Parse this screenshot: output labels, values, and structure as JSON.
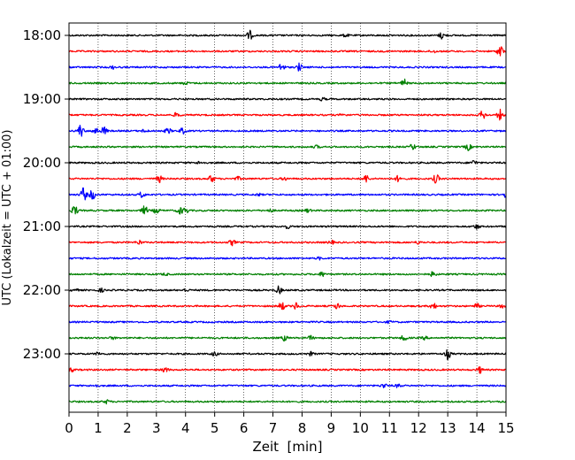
{
  "chart_data": {
    "type": "line",
    "subtype": "helicorder",
    "title": "",
    "xlabel": "Zeit  [min]",
    "ylabel": "UTC (Lokalzeit = UTC + 01:00)",
    "xlim": [
      0,
      15
    ],
    "x_ticks": [
      "0",
      "1",
      "2",
      "3",
      "4",
      "5",
      "6",
      "7",
      "8",
      "9",
      "10",
      "11",
      "12",
      "13",
      "14",
      "15"
    ],
    "minutes_per_trace": 15,
    "start_time": "18:00",
    "y_tick_labels": [
      "18:00",
      "19:00",
      "20:00",
      "21:00",
      "22:00",
      "23:00"
    ],
    "grid": {
      "x": true,
      "style": "dotted"
    },
    "trace_colors": [
      "#000000",
      "#ff0000",
      "#0000ff",
      "#008000"
    ],
    "traces": [
      {
        "start": "18:00",
        "color": "#000000",
        "events": [
          [
            6.2,
            1.6
          ],
          [
            12.8,
            1.2
          ],
          [
            9.5,
            0.5
          ]
        ]
      },
      {
        "start": "18:15",
        "color": "#ff0000",
        "events": [
          [
            14.8,
            2.2
          ],
          [
            12.5,
            0.5
          ]
        ]
      },
      {
        "start": "18:30",
        "color": "#0000ff",
        "events": [
          [
            7.3,
            1.5
          ],
          [
            7.9,
            1.3
          ],
          [
            1.5,
            0.5
          ]
        ]
      },
      {
        "start": "18:45",
        "color": "#008000",
        "events": [
          [
            11.5,
            1.3
          ],
          [
            4.0,
            0.5
          ]
        ]
      },
      {
        "start": "19:00",
        "color": "#000000",
        "events": [
          [
            8.7,
            0.5
          ]
        ]
      },
      {
        "start": "19:15",
        "color": "#ff0000",
        "events": [
          [
            3.7,
            0.8
          ],
          [
            14.2,
            1.5
          ],
          [
            14.8,
            1.8
          ],
          [
            9.4,
            0.5
          ]
        ]
      },
      {
        "start": "19:30",
        "color": "#0000ff",
        "events": [
          [
            0.4,
            2.2
          ],
          [
            0.9,
            1.2
          ],
          [
            1.2,
            1.4
          ],
          [
            3.4,
            1.0
          ],
          [
            3.9,
            1.0
          ],
          [
            2.6,
            0.6
          ]
        ]
      },
      {
        "start": "19:45",
        "color": "#008000",
        "events": [
          [
            11.8,
            1.0
          ],
          [
            13.7,
            1.2
          ],
          [
            8.5,
            0.5
          ]
        ]
      },
      {
        "start": "20:00",
        "color": "#000000",
        "events": [
          [
            13.9,
            0.9
          ],
          [
            4.5,
            0.5
          ]
        ]
      },
      {
        "start": "20:15",
        "color": "#ff0000",
        "events": [
          [
            3.1,
            1.2
          ],
          [
            4.9,
            1.4
          ],
          [
            10.2,
            1.3
          ],
          [
            11.3,
            1.0
          ],
          [
            12.6,
            1.6
          ],
          [
            5.8,
            0.6
          ],
          [
            7.4,
            0.5
          ]
        ]
      },
      {
        "start": "20:30",
        "color": "#0000ff",
        "events": [
          [
            0.5,
            2.5
          ],
          [
            0.8,
            1.8
          ],
          [
            2.5,
            1.0
          ],
          [
            15.0,
            1.2
          ],
          [
            6.5,
            0.4
          ]
        ]
      },
      {
        "start": "20:45",
        "color": "#008000",
        "events": [
          [
            0.2,
            1.8
          ],
          [
            2.6,
            1.6
          ],
          [
            3.0,
            1.0
          ],
          [
            3.8,
            1.2
          ],
          [
            4.0,
            1.0
          ],
          [
            6.9,
            0.5
          ],
          [
            8.2,
            0.6
          ]
        ]
      },
      {
        "start": "21:00",
        "color": "#000000",
        "events": [
          [
            7.5,
            0.6
          ],
          [
            14.0,
            0.8
          ]
        ]
      },
      {
        "start": "21:15",
        "color": "#ff0000",
        "events": [
          [
            2.4,
            0.8
          ],
          [
            5.6,
            1.0
          ],
          [
            9.0,
            0.6
          ],
          [
            12.0,
            0.5
          ]
        ]
      },
      {
        "start": "21:30",
        "color": "#0000ff",
        "events": [
          [
            8.6,
            0.4
          ]
        ]
      },
      {
        "start": "21:45",
        "color": "#008000",
        "events": [
          [
            8.7,
            0.8
          ],
          [
            12.5,
            0.9
          ],
          [
            3.3,
            0.4
          ]
        ]
      },
      {
        "start": "22:00",
        "color": "#000000",
        "events": [
          [
            7.2,
            1.3
          ],
          [
            0.2,
            0.6
          ],
          [
            1.1,
            0.6
          ],
          [
            4.0,
            0.5
          ]
        ]
      },
      {
        "start": "22:15",
        "color": "#ff0000",
        "events": [
          [
            7.3,
            1.6
          ],
          [
            7.8,
            1.2
          ],
          [
            9.2,
            1.0
          ],
          [
            12.5,
            1.2
          ],
          [
            14.0,
            0.8
          ],
          [
            14.9,
            0.9
          ]
        ]
      },
      {
        "start": "22:30",
        "color": "#0000ff",
        "events": [
          [
            11.0,
            0.4
          ]
        ]
      },
      {
        "start": "22:45",
        "color": "#008000",
        "events": [
          [
            7.4,
            0.9
          ],
          [
            8.3,
            0.7
          ],
          [
            11.5,
            1.0
          ],
          [
            12.2,
            0.5
          ],
          [
            1.5,
            0.4
          ]
        ]
      },
      {
        "start": "23:00",
        "color": "#000000",
        "events": [
          [
            13.0,
            1.8
          ],
          [
            5.0,
            0.7
          ],
          [
            8.3,
            0.6
          ],
          [
            1.0,
            0.5
          ]
        ]
      },
      {
        "start": "23:15",
        "color": "#ff0000",
        "events": [
          [
            3.3,
            1.0
          ],
          [
            14.1,
            1.1
          ],
          [
            0.1,
            0.5
          ]
        ]
      },
      {
        "start": "23:30",
        "color": "#0000ff",
        "events": [
          [
            10.8,
            0.8
          ],
          [
            11.3,
            0.6
          ],
          [
            0.9,
            0.4
          ]
        ]
      },
      {
        "start": "23:45",
        "color": "#008000",
        "events": [
          [
            1.3,
            0.6
          ]
        ]
      }
    ]
  }
}
